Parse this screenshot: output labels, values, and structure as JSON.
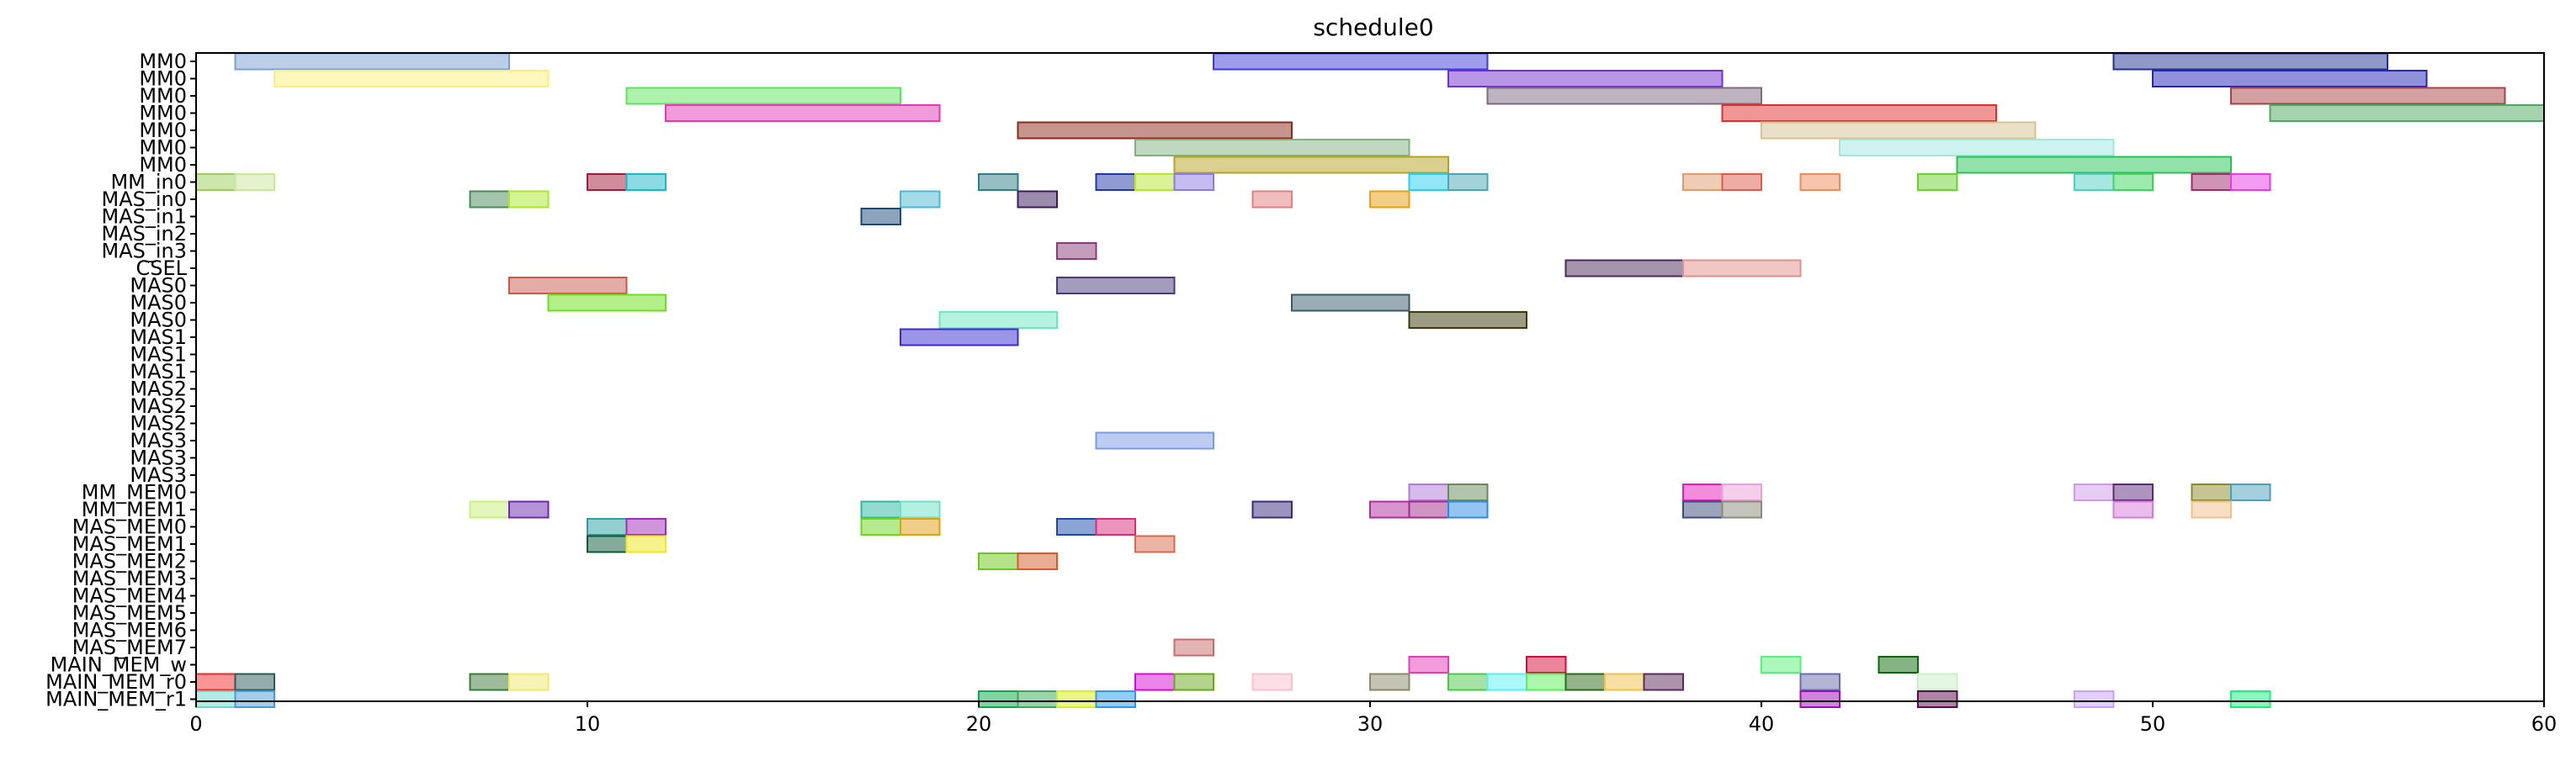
{
  "chart_data": {
    "type": "gantt",
    "title": "schedule0",
    "xlabel": "",
    "ylabel": "",
    "xlim": [
      0,
      60
    ],
    "xticks": [
      0,
      10,
      20,
      30,
      40,
      50,
      60
    ],
    "grid": false,
    "rows": [
      "MM0",
      "MM0",
      "MM0",
      "MM0",
      "MM0",
      "MM0",
      "MM0",
      "MM_in0",
      "MAS_in0",
      "MAS_in1",
      "MAS_in2",
      "MAS_in3",
      "CSEL",
      "MAS0",
      "MAS0",
      "MAS0",
      "MAS1",
      "MAS1",
      "MAS1",
      "MAS2",
      "MAS2",
      "MAS2",
      "MAS3",
      "MAS3",
      "MAS3",
      "MM_MEM0",
      "MM_MEM1",
      "MAS_MEM0",
      "MAS_MEM1",
      "MAS_MEM2",
      "MAS_MEM3",
      "MAS_MEM4",
      "MAS_MEM5",
      "MAS_MEM6",
      "MAS_MEM7",
      "MAIN_MEM_w",
      "MAIN_MEM_r0",
      "MAIN_MEM_r1"
    ],
    "tasks": [
      {
        "row": 0,
        "start": 1,
        "end": 8,
        "color": "#7b9fd1"
      },
      {
        "row": 0,
        "start": 26,
        "end": 33,
        "color": "#3b3bd9"
      },
      {
        "row": 0,
        "start": 49,
        "end": 56,
        "color": "#22318f"
      },
      {
        "row": 1,
        "start": 2,
        "end": 9,
        "color": "#ffef7a"
      },
      {
        "row": 1,
        "start": 32,
        "end": 39,
        "color": "#6f2fcc"
      },
      {
        "row": 1,
        "start": 50,
        "end": 57,
        "color": "#2424b5"
      },
      {
        "row": 2,
        "start": 11,
        "end": 18,
        "color": "#5be35b"
      },
      {
        "row": 2,
        "start": 33,
        "end": 40,
        "color": "#7d6a7f"
      },
      {
        "row": 2,
        "start": 52,
        "end": 59,
        "color": "#a84343"
      },
      {
        "row": 3,
        "start": 12,
        "end": 19,
        "color": "#e637b8"
      },
      {
        "row": 3,
        "start": 39,
        "end": 46,
        "color": "#e32d2d"
      },
      {
        "row": 3,
        "start": 53,
        "end": 60,
        "color": "#4ca85c"
      },
      {
        "row": 4,
        "start": 21,
        "end": 28,
        "color": "#8b2a1a"
      },
      {
        "row": 4,
        "start": 40,
        "end": 47,
        "color": "#d6c28f"
      },
      {
        "row": 5,
        "start": 24,
        "end": 31,
        "color": "#7fb27f"
      },
      {
        "row": 5,
        "start": 42,
        "end": 49,
        "color": "#9ee8dd"
      },
      {
        "row": 6,
        "start": 25,
        "end": 32,
        "color": "#b5a221"
      },
      {
        "row": 6,
        "start": 45,
        "end": 52,
        "color": "#26c256"
      },
      {
        "row": 7,
        "start": 0,
        "end": 1,
        "color": "#9acd5a"
      },
      {
        "row": 7,
        "start": 1,
        "end": 2,
        "color": "#c9e89a"
      },
      {
        "row": 7,
        "start": 10,
        "end": 11,
        "color": "#a31a3a"
      },
      {
        "row": 7,
        "start": 11,
        "end": 12,
        "color": "#17b8c9"
      },
      {
        "row": 7,
        "start": 20,
        "end": 21,
        "color": "#2e7d87"
      },
      {
        "row": 7,
        "start": 23,
        "end": 24,
        "color": "#2137a8"
      },
      {
        "row": 7,
        "start": 24,
        "end": 25,
        "color": "#b7e82e"
      },
      {
        "row": 7,
        "start": 25,
        "end": 26,
        "color": "#8a7ae8"
      },
      {
        "row": 7,
        "start": 31,
        "end": 32,
        "color": "#24d0f0"
      },
      {
        "row": 7,
        "start": 32,
        "end": 33,
        "color": "#4aa6b5"
      },
      {
        "row": 7,
        "start": 38,
        "end": 39,
        "color": "#e09a6a"
      },
      {
        "row": 7,
        "start": 39,
        "end": 40,
        "color": "#e05a4a"
      },
      {
        "row": 7,
        "start": 41,
        "end": 42,
        "color": "#f08a5a"
      },
      {
        "row": 7,
        "start": 44,
        "end": 45,
        "color": "#6ad02e"
      },
      {
        "row": 7,
        "start": 48,
        "end": 49,
        "color": "#4ed0c0"
      },
      {
        "row": 7,
        "start": 49,
        "end": 50,
        "color": "#3ad85a"
      },
      {
        "row": 7,
        "start": 51,
        "end": 52,
        "color": "#a02a6a"
      },
      {
        "row": 7,
        "start": 52,
        "end": 53,
        "color": "#ea3ae8"
      },
      {
        "row": 8,
        "start": 7,
        "end": 8,
        "color": "#4a8a5a"
      },
      {
        "row": 8,
        "start": 8,
        "end": 9,
        "color": "#a8e82a"
      },
      {
        "row": 8,
        "start": 18,
        "end": 19,
        "color": "#4ab8d0"
      },
      {
        "row": 8,
        "start": 21,
        "end": 22,
        "color": "#3a1a5a"
      },
      {
        "row": 8,
        "start": 27,
        "end": 28,
        "color": "#e08080"
      },
      {
        "row": 8,
        "start": 30,
        "end": 31,
        "color": "#e6a010"
      },
      {
        "row": 9,
        "start": 17,
        "end": 18,
        "color": "#1a4a7a"
      },
      {
        "row": 11,
        "start": 22,
        "end": 23,
        "color": "#8a3a7a"
      },
      {
        "row": 12,
        "start": 35,
        "end": 38,
        "color": "#4a2a5a"
      },
      {
        "row": 12,
        "start": 38,
        "end": 41,
        "color": "#e0908a"
      },
      {
        "row": 13,
        "start": 8,
        "end": 11,
        "color": "#c85a4a"
      },
      {
        "row": 13,
        "start": 22,
        "end": 25,
        "color": "#4a3a7a"
      },
      {
        "row": 14,
        "start": 9,
        "end": 12,
        "color": "#6ae01a"
      },
      {
        "row": 14,
        "start": 28,
        "end": 31,
        "color": "#3a5a6a"
      },
      {
        "row": 15,
        "start": 19,
        "end": 22,
        "color": "#6ae8c0"
      },
      {
        "row": 15,
        "start": 31,
        "end": 34,
        "color": "#3a3a0a"
      },
      {
        "row": 16,
        "start": 18,
        "end": 21,
        "color": "#3a2ad0"
      },
      {
        "row": 22,
        "start": 23,
        "end": 26,
        "color": "#7a9ae8"
      },
      {
        "row": 25,
        "start": 31,
        "end": 32,
        "color": "#b07ad8"
      },
      {
        "row": 25,
        "start": 32,
        "end": 33,
        "color": "#6a8a5a"
      },
      {
        "row": 25,
        "start": 38,
        "end": 39,
        "color": "#e81ab8"
      },
      {
        "row": 25,
        "start": 39,
        "end": 40,
        "color": "#e8a0d8"
      },
      {
        "row": 25,
        "start": 48,
        "end": 49,
        "color": "#d09ae8"
      },
      {
        "row": 25,
        "start": 49,
        "end": 50,
        "color": "#5a2a7a"
      },
      {
        "row": 25,
        "start": 51,
        "end": 52,
        "color": "#8a8a2a"
      },
      {
        "row": 25,
        "start": 52,
        "end": 53,
        "color": "#4aa0b8"
      },
      {
        "row": 26,
        "start": 7,
        "end": 8,
        "color": "#c8f07a"
      },
      {
        "row": 26,
        "start": 8,
        "end": 9,
        "color": "#6a2ab0"
      },
      {
        "row": 26,
        "start": 17,
        "end": 18,
        "color": "#2ab8a0"
      },
      {
        "row": 26,
        "start": 18,
        "end": 19,
        "color": "#6ae0c8"
      },
      {
        "row": 26,
        "start": 27,
        "end": 28,
        "color": "#3a2a7a"
      },
      {
        "row": 26,
        "start": 30,
        "end": 31,
        "color": "#b02aa0"
      },
      {
        "row": 26,
        "start": 31,
        "end": 32,
        "color": "#a02a8a"
      },
      {
        "row": 26,
        "start": 32,
        "end": 33,
        "color": "#2a8ae0"
      },
      {
        "row": 26,
        "start": 38,
        "end": 39,
        "color": "#3a4a7a"
      },
      {
        "row": 26,
        "start": 39,
        "end": 40,
        "color": "#8a8a7a"
      },
      {
        "row": 26,
        "start": 49,
        "end": 50,
        "color": "#d87ad8"
      },
      {
        "row": 26,
        "start": 51,
        "end": 52,
        "color": "#f0c08a"
      },
      {
        "row": 27,
        "start": 10,
        "end": 11,
        "color": "#2aa0a0"
      },
      {
        "row": 27,
        "start": 11,
        "end": 12,
        "color": "#a02ab8"
      },
      {
        "row": 27,
        "start": 17,
        "end": 18,
        "color": "#6ad81a"
      },
      {
        "row": 27,
        "start": 18,
        "end": 19,
        "color": "#e0a010"
      },
      {
        "row": 27,
        "start": 22,
        "end": 23,
        "color": "#1a4aa8"
      },
      {
        "row": 27,
        "start": 23,
        "end": 24,
        "color": "#d82a7a"
      },
      {
        "row": 28,
        "start": 10,
        "end": 11,
        "color": "#0a5a3a"
      },
      {
        "row": 28,
        "start": 11,
        "end": 12,
        "color": "#f0e81a"
      },
      {
        "row": 28,
        "start": 24,
        "end": 25,
        "color": "#d86a4a"
      },
      {
        "row": 29,
        "start": 20,
        "end": 21,
        "color": "#6ac81a"
      },
      {
        "row": 29,
        "start": 21,
        "end": 22,
        "color": "#d85a2a"
      },
      {
        "row": 34,
        "start": 25,
        "end": 26,
        "color": "#c86a6a"
      },
      {
        "row": 35,
        "start": 31,
        "end": 32,
        "color": "#e83ab8"
      },
      {
        "row": 35,
        "start": 34,
        "end": 35,
        "color": "#d80a3a"
      },
      {
        "row": 35,
        "start": 40,
        "end": 41,
        "color": "#5af07a"
      },
      {
        "row": 35,
        "start": 43,
        "end": 44,
        "color": "#0a6a0a"
      },
      {
        "row": 36,
        "start": 0,
        "end": 1,
        "color": "#f02a2a"
      },
      {
        "row": 36,
        "start": 1,
        "end": 2,
        "color": "#2a5a5a"
      },
      {
        "row": 36,
        "start": 7,
        "end": 8,
        "color": "#3a7a3a"
      },
      {
        "row": 36,
        "start": 8,
        "end": 9,
        "color": "#f0e86a"
      },
      {
        "row": 36,
        "start": 24,
        "end": 25,
        "color": "#d80ad8"
      },
      {
        "row": 36,
        "start": 25,
        "end": 26,
        "color": "#6aa81a"
      },
      {
        "row": 36,
        "start": 27,
        "end": 28,
        "color": "#f8c0d0"
      },
      {
        "row": 36,
        "start": 30,
        "end": 31,
        "color": "#8a8a6a"
      },
      {
        "row": 36,
        "start": 32,
        "end": 33,
        "color": "#4ac84a"
      },
      {
        "row": 36,
        "start": 33,
        "end": 34,
        "color": "#5af0f0"
      },
      {
        "row": 36,
        "start": 34,
        "end": 35,
        "color": "#5af05a"
      },
      {
        "row": 36,
        "start": 35,
        "end": 36,
        "color": "#2a6a1a"
      },
      {
        "row": 36,
        "start": 36,
        "end": 37,
        "color": "#f0c04a"
      },
      {
        "row": 36,
        "start": 37,
        "end": 38,
        "color": "#5a2a5a"
      },
      {
        "row": 36,
        "start": 41,
        "end": 42,
        "color": "#6a6ab0"
      },
      {
        "row": 36,
        "start": 44,
        "end": 45,
        "color": "#c8f0c8"
      },
      {
        "row": 37,
        "start": 0,
        "end": 1,
        "color": "#6ad8c8"
      },
      {
        "row": 37,
        "start": 1,
        "end": 2,
        "color": "#4a9ad8"
      },
      {
        "row": 37,
        "start": 20,
        "end": 21,
        "color": "#0aa84a"
      },
      {
        "row": 37,
        "start": 21,
        "end": 22,
        "color": "#3aa85a"
      },
      {
        "row": 37,
        "start": 22,
        "end": 23,
        "color": "#d8f01a"
      },
      {
        "row": 37,
        "start": 23,
        "end": 24,
        "color": "#2a9af0"
      },
      {
        "row": 37,
        "start": 41,
        "end": 42,
        "color": "#a00ab8"
      },
      {
        "row": 37,
        "start": 44,
        "end": 45,
        "color": "#5a0a4a"
      },
      {
        "row": 37,
        "start": 48,
        "end": 49,
        "color": "#c8a0f8"
      },
      {
        "row": 37,
        "start": 52,
        "end": 53,
        "color": "#1af07a"
      }
    ]
  }
}
